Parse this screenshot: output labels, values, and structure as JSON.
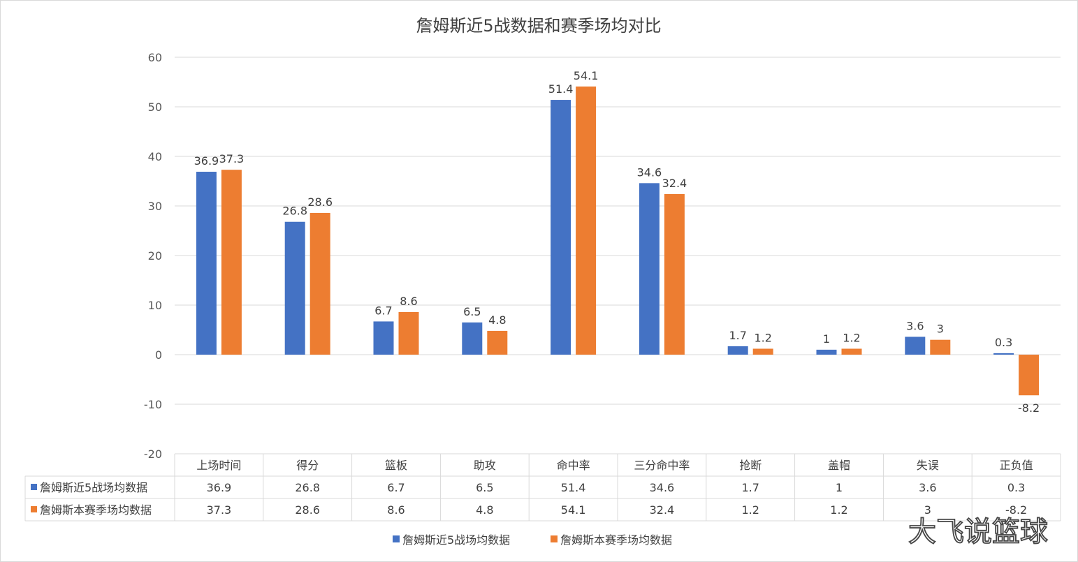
{
  "chart_data": {
    "type": "bar",
    "title": "詹姆斯近5战数据和赛季场均对比",
    "categories": [
      "上场时间",
      "得分",
      "篮板",
      "助攻",
      "命中率",
      "三分命中率",
      "抢断",
      "盖帽",
      "失误",
      "正负值"
    ],
    "series": [
      {
        "name": "詹姆斯近5战场均数据",
        "color": "#4472C4",
        "values": [
          36.9,
          26.8,
          6.7,
          6.5,
          51.4,
          34.6,
          1.7,
          1,
          3.6,
          0.3
        ]
      },
      {
        "name": "詹姆斯本赛季场均数据",
        "color": "#ED7D31",
        "values": [
          37.3,
          28.6,
          8.6,
          4.8,
          54.1,
          32.4,
          1.2,
          1.2,
          3,
          -8.2
        ]
      }
    ],
    "ylim": [
      -20,
      60
    ],
    "yticks": [
      -20,
      -10,
      0,
      10,
      20,
      30,
      40,
      50,
      60
    ],
    "grid": true,
    "legend": "bottom",
    "data_table": true
  },
  "watermark": "大飞说篮球"
}
